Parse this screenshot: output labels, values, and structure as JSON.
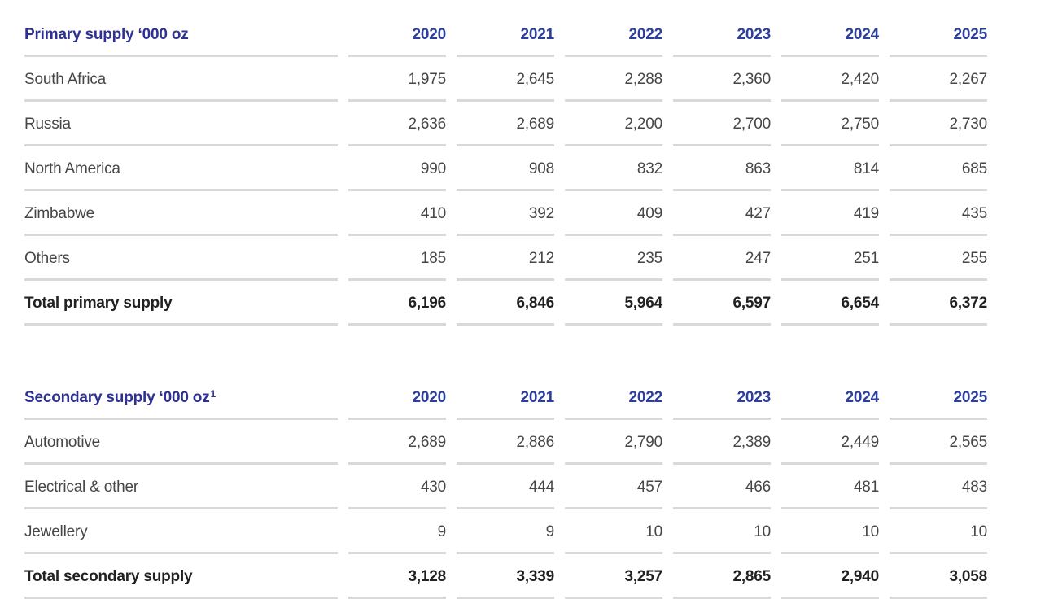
{
  "colors": {
    "section_title_blue": "#2e3192",
    "year_header_blue": "#2c3e9e",
    "body_text": "#464646",
    "total_text": "#212121",
    "rule_gray": "#d9d9d9",
    "background": "#ffffff"
  },
  "tables": [
    {
      "title": "Primary supply ‘000 oz",
      "years": [
        "2020",
        "2021",
        "2022",
        "2023",
        "2024",
        "2025"
      ],
      "rows": [
        {
          "label": "South Africa",
          "values": [
            "1,975",
            "2,645",
            "2,288",
            "2,360",
            "2,420",
            "2,267"
          ]
        },
        {
          "label": "Russia",
          "values": [
            "2,636",
            "2,689",
            "2,200",
            "2,700",
            "2,750",
            "2,730"
          ]
        },
        {
          "label": "North America",
          "values": [
            "990",
            "908",
            "832",
            "863",
            "814",
            "685"
          ]
        },
        {
          "label": "Zimbabwe",
          "values": [
            "410",
            "392",
            "409",
            "427",
            "419",
            "435"
          ]
        },
        {
          "label": "Others",
          "values": [
            "185",
            "212",
            "235",
            "247",
            "251",
            "255"
          ]
        },
        {
          "label": "Total primary supply",
          "values": [
            "6,196",
            "6,846",
            "5,964",
            "6,597",
            "6,654",
            "6,372"
          ],
          "is_total": true
        }
      ]
    },
    {
      "title": "Secondary supply ‘000 oz",
      "title_superscript": "1",
      "years": [
        "2020",
        "2021",
        "2022",
        "2023",
        "2024",
        "2025"
      ],
      "rows": [
        {
          "label": "Automotive",
          "values": [
            "2,689",
            "2,886",
            "2,790",
            "2,389",
            "2,449",
            "2,565"
          ]
        },
        {
          "label": "Electrical & other",
          "values": [
            "430",
            "444",
            "457",
            "466",
            "481",
            "483"
          ]
        },
        {
          "label": "Jewellery",
          "values": [
            "9",
            "9",
            "10",
            "10",
            "10",
            "10"
          ]
        },
        {
          "label": "Total secondary supply",
          "values": [
            "3,128",
            "3,339",
            "3,257",
            "2,865",
            "2,940",
            "3,058"
          ],
          "is_total": true
        }
      ]
    }
  ]
}
